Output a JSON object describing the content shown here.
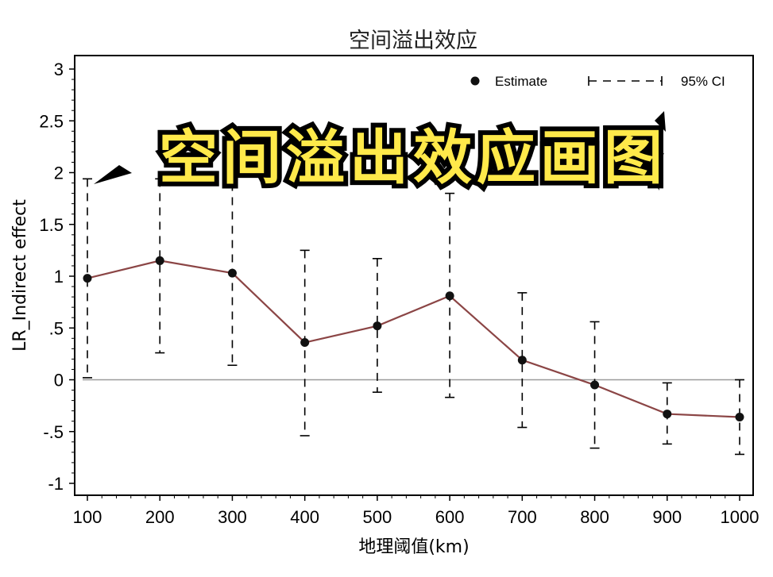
{
  "chart_data": {
    "type": "line",
    "title": "空间溢出效应",
    "xlabel": "地理阈值(km)",
    "ylabel": "LR_Indirect effect",
    "x": [
      100,
      200,
      300,
      400,
      500,
      600,
      700,
      800,
      900,
      1000
    ],
    "xlim": [
      100,
      1000
    ],
    "xticks": [
      "100",
      "200",
      "300",
      "400",
      "500",
      "600",
      "700",
      "800",
      "900",
      "1000"
    ],
    "ylim": [
      -1,
      3
    ],
    "yticks": [
      {
        "value": 3,
        "label": "3"
      },
      {
        "value": 2.5,
        "label": "2.5"
      },
      {
        "value": 2,
        "label": "2"
      },
      {
        "value": 1.5,
        "label": "1.5"
      },
      {
        "value": 1,
        "label": "1"
      },
      {
        "value": 0.5,
        "label": ".5"
      },
      {
        "value": 0,
        "label": "0"
      },
      {
        "value": -0.5,
        "label": "-.5"
      },
      {
        "value": -1,
        "label": "-1"
      }
    ],
    "reference_line_y": 0,
    "series": [
      {
        "name": "Estimate",
        "values": [
          0.98,
          1.15,
          1.03,
          0.36,
          0.52,
          0.81,
          0.19,
          -0.05,
          -0.33,
          -0.36
        ],
        "color": "#8b4545",
        "marker_color": "#111111"
      },
      {
        "name": "95% CI",
        "lower": [
          0.02,
          0.26,
          0.14,
          -0.54,
          -0.12,
          -0.17,
          -0.46,
          -0.66,
          -0.62,
          -0.72
        ],
        "upper": [
          1.94,
          1.94,
          1.9,
          1.25,
          1.17,
          1.8,
          0.84,
          0.56,
          -0.03,
          0.0
        ],
        "color": "#000000"
      }
    ],
    "legend": {
      "placement": "top-right",
      "estimate_label": "Estimate",
      "ci_label": "95% CI"
    },
    "grid": false
  },
  "banner": {
    "text": "空间溢出效应画图",
    "fill": "#ffe94a",
    "outline": "#000000"
  }
}
